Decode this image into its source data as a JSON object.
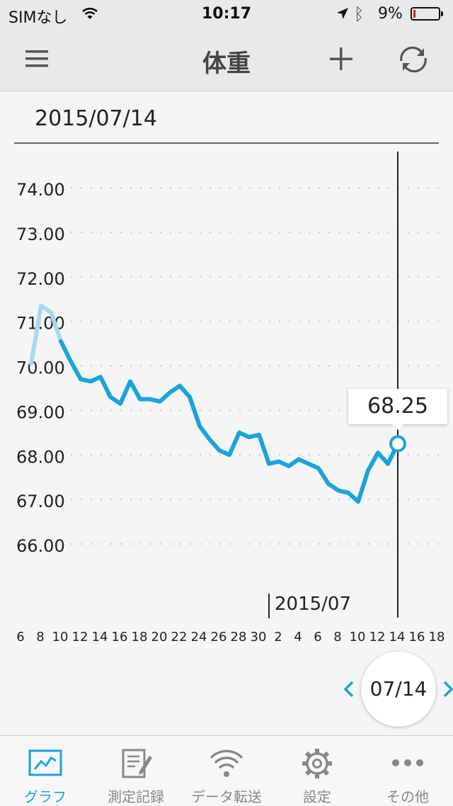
{
  "status": {
    "carrier": "SIMなし",
    "time": "10:17",
    "battery": "9%",
    "battery_level": 0.09
  },
  "nav": {
    "title": "体重",
    "icons": {
      "menu": "hamburger-menu-icon",
      "add": "plus-icon",
      "sync": "sync-icon"
    }
  },
  "header_date": "2015/07/14",
  "chart_data": {
    "type": "line",
    "y_ticks": [
      "74.00",
      "73.00",
      "72.00",
      "71.00",
      "70.00",
      "69.00",
      "68.00",
      "67.00",
      "66.00"
    ],
    "ylim": [
      66,
      74
    ],
    "x_tick_labels": [
      "6",
      "8",
      "10",
      "12",
      "14",
      "16",
      "18",
      "20",
      "22",
      "24",
      "26",
      "28",
      "30",
      "2",
      "4",
      "6",
      "8",
      "10",
      "12",
      "14",
      "16",
      "18"
    ],
    "month_marker": "2015/07",
    "grid": "dotted-horizontal",
    "selected_value": "68.25",
    "selected_index": 38,
    "series": [
      {
        "color": "#1ba3dc",
        "faded_color": "#a8d8f0",
        "faded_count": 3,
        "values": [
          70.05,
          71.35,
          71.2,
          70.55,
          70.1,
          69.7,
          69.65,
          69.75,
          69.3,
          69.15,
          69.65,
          69.25,
          69.25,
          69.2,
          69.4,
          69.55,
          69.3,
          68.65,
          68.35,
          68.1,
          68.0,
          68.5,
          68.4,
          68.45,
          67.8,
          67.85,
          67.75,
          67.9,
          67.8,
          67.7,
          67.35,
          67.2,
          67.15,
          66.95,
          67.65,
          68.05,
          67.8,
          68.25
        ]
      }
    ]
  },
  "date_selector": {
    "label": "07/14",
    "accent": "#1ba3dc"
  },
  "tabs": [
    {
      "label": "グラフ",
      "icon": "chart-icon",
      "active": true
    },
    {
      "label": "測定記録",
      "icon": "notepad-edit-icon",
      "active": false
    },
    {
      "label": "データ転送",
      "icon": "wireless-transfer-icon",
      "active": false
    },
    {
      "label": "設定",
      "icon": "gear-icon",
      "active": false
    },
    {
      "label": "その他",
      "icon": "more-dots-icon",
      "active": false
    }
  ]
}
